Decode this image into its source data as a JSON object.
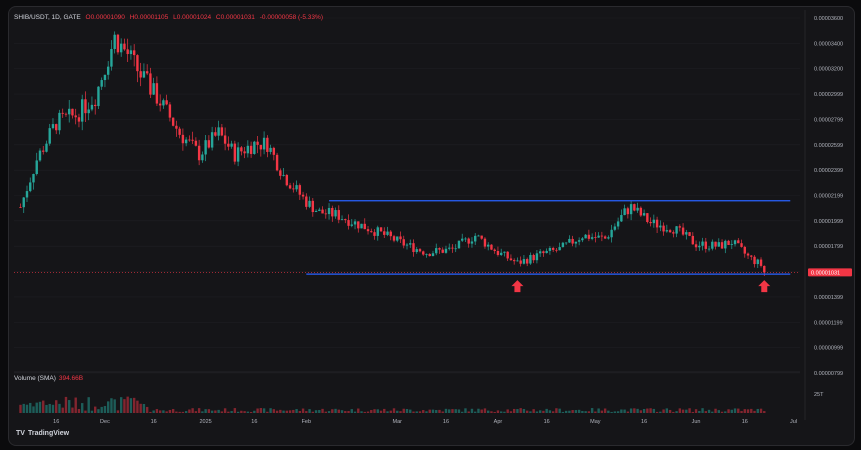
{
  "legend": {
    "symbol": "SHIB/USDT, 1D, GATE",
    "open": "O0.00001090",
    "high": "H0.00001105",
    "low": "L0.00001024",
    "close": "C0.00001031",
    "change": "-0.00000058 (-5.33%)"
  },
  "volume_legend": {
    "label": "Volume (SMA)",
    "value": "394.66B"
  },
  "branding": {
    "logo": "TV",
    "name": "TradingView"
  },
  "colors": {
    "up": "#26a69a",
    "down": "#f23645",
    "channel": "#2962ff",
    "arrow": "#f23645"
  },
  "chart_data": {
    "type": "candlestick",
    "ylim": [
      9.7e-07,
      3.46e-05
    ],
    "y_ticks": [
      "0.00003600",
      "0.00003400",
      "0.00003200",
      "0.00002999",
      "0.00002799",
      "0.00002599",
      "0.00002399",
      "0.00002199",
      "0.00001999",
      "0.00001799",
      "0.00001599",
      "0.00001399",
      "0.00001199",
      "0.00000999",
      "0.00000799"
    ],
    "last_price_label": "0.00001031",
    "x_ticks": [
      "16",
      "Dec",
      "16",
      "2025",
      "16",
      "Feb",
      "Mar",
      "16",
      "Apr",
      "16",
      "May",
      "16",
      "Jun",
      "16",
      "Jul"
    ],
    "volume_axis_label": "25T",
    "series": [
      {
        "date": "2024-11-05",
        "close": 1.65e-05
      },
      {
        "date": "2024-11-10",
        "close": 2.1e-05
      },
      {
        "date": "2024-11-16",
        "close": 2.45e-05
      },
      {
        "date": "2024-11-22",
        "close": 2.52e-05
      },
      {
        "date": "2024-11-28",
        "close": 2.7e-05
      },
      {
        "date": "2024-12-04",
        "close": 3.25e-05
      },
      {
        "date": "2024-12-08",
        "close": 3.1e-05
      },
      {
        "date": "2024-12-12",
        "close": 2.9e-05
      },
      {
        "date": "2024-12-18",
        "close": 2.65e-05
      },
      {
        "date": "2024-12-24",
        "close": 2.35e-05
      },
      {
        "date": "2024-12-30",
        "close": 2.15e-05
      },
      {
        "date": "2025-01-05",
        "close": 2.35e-05
      },
      {
        "date": "2025-01-10",
        "close": 2.15e-05
      },
      {
        "date": "2025-01-16",
        "close": 2.25e-05
      },
      {
        "date": "2025-01-20",
        "close": 2.25e-05
      },
      {
        "date": "2025-01-25",
        "close": 1.95e-05
      },
      {
        "date": "2025-02-01",
        "close": 1.7e-05
      },
      {
        "date": "2025-02-05",
        "close": 1.6e-05
      },
      {
        "date": "2025-02-10",
        "close": 1.58e-05
      },
      {
        "date": "2025-02-16",
        "close": 1.5e-05
      },
      {
        "date": "2025-02-24",
        "close": 1.4e-05
      },
      {
        "date": "2025-03-03",
        "close": 1.3e-05
      },
      {
        "date": "2025-03-10",
        "close": 1.22e-05
      },
      {
        "date": "2025-03-18",
        "close": 1.25e-05
      },
      {
        "date": "2025-03-25",
        "close": 1.38e-05
      },
      {
        "date": "2025-04-01",
        "close": 1.22e-05
      },
      {
        "date": "2025-04-07",
        "close": 1.12e-05
      },
      {
        "date": "2025-04-14",
        "close": 1.2e-05
      },
      {
        "date": "2025-04-20",
        "close": 1.25e-05
      },
      {
        "date": "2025-04-27",
        "close": 1.38e-05
      },
      {
        "date": "2025-05-04",
        "close": 1.35e-05
      },
      {
        "date": "2025-05-10",
        "close": 1.6e-05
      },
      {
        "date": "2025-05-12",
        "close": 1.65e-05
      },
      {
        "date": "2025-05-18",
        "close": 1.5e-05
      },
      {
        "date": "2025-05-25",
        "close": 1.45e-05
      },
      {
        "date": "2025-06-01",
        "close": 1.3e-05
      },
      {
        "date": "2025-06-08",
        "close": 1.28e-05
      },
      {
        "date": "2025-06-12",
        "close": 1.32e-05
      },
      {
        "date": "2025-06-17",
        "close": 1.18e-05
      },
      {
        "date": "2025-06-21",
        "close": 1.1e-05
      },
      {
        "date": "2025-06-22",
        "close": 1.03e-05
      }
    ],
    "channel": {
      "upper": 1.71e-05,
      "lower": 1.015e-05
    },
    "markers": [
      {
        "date": "2025-04-07"
      },
      {
        "date": "2025-06-22"
      }
    ]
  }
}
